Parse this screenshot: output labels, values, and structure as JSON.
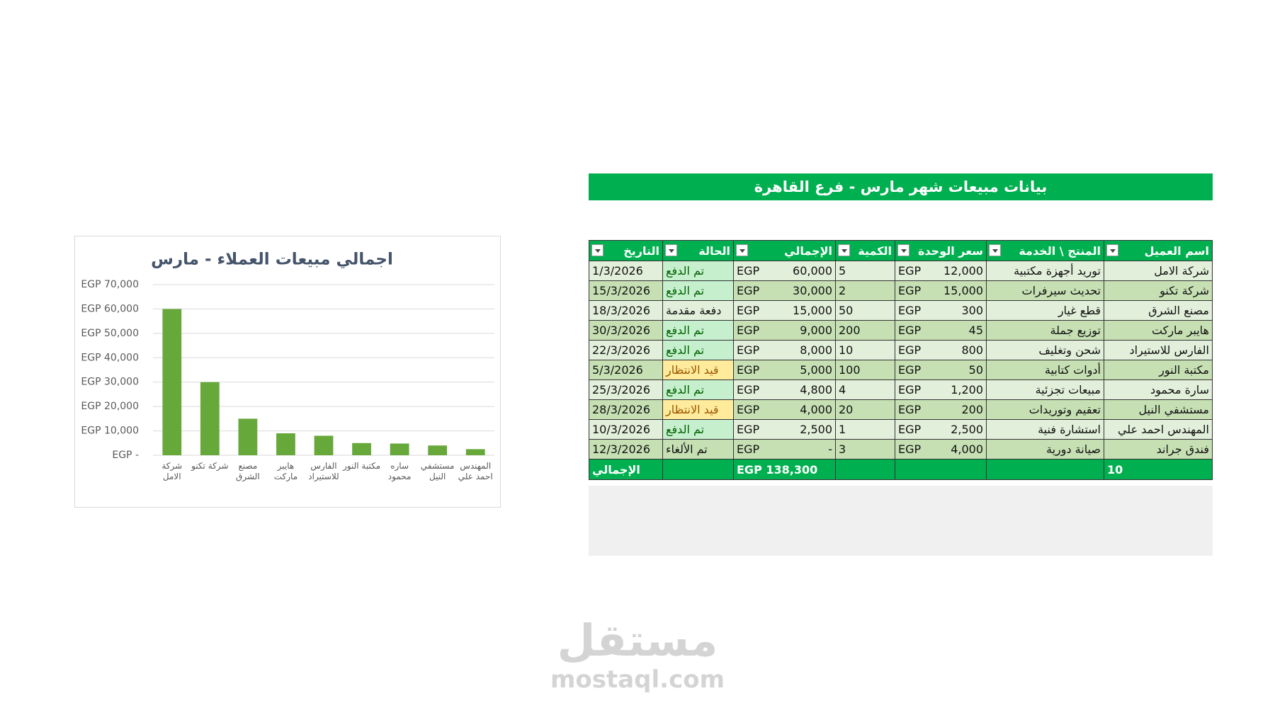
{
  "chart_data": {
    "type": "bar",
    "title": "اجمالي مبيعات العملاء - مارس",
    "categories": [
      "شركة الامل",
      "شركة تكنو",
      "مصنع الشرق",
      "هايبر ماركت",
      "الفارس للاستيراد",
      "مكتبة النور",
      "ساره محمود",
      "مستشفي النيل",
      "المهندس احمد علي"
    ],
    "values": [
      60000,
      30000,
      15000,
      9000,
      8000,
      5000,
      4800,
      4000,
      2500
    ],
    "color": "#67a83b",
    "ylim": [
      0,
      70000
    ],
    "yticks": [
      {
        "value": 0,
        "label": "EGP -"
      },
      {
        "value": 10000,
        "label": "EGP 10,000"
      },
      {
        "value": 20000,
        "label": "EGP 20,000"
      },
      {
        "value": 30000,
        "label": "EGP 30,000"
      },
      {
        "value": 40000,
        "label": "EGP 40,000"
      },
      {
        "value": 50000,
        "label": "EGP 50,000"
      },
      {
        "value": 60000,
        "label": "EGP 60,000"
      },
      {
        "value": 70000,
        "label": "EGP 70,000"
      }
    ],
    "grid": true
  },
  "table": {
    "title": "بيانات مبيعات شهر مارس - فرع القاهرة",
    "currency": "EGP",
    "headers": [
      "اسم العميل",
      "المنتج \\ الخدمة",
      "سعر الوحدة",
      "الكمية",
      "الإجمالي",
      "الحالة",
      "التاريخ"
    ],
    "rows": [
      {
        "client": "شركة الامل",
        "product": "توريد أجهزة مكتبية",
        "price": "12,000",
        "qty": "5",
        "total": "60,000",
        "status": "تم الدفع",
        "status_color": "#006100",
        "status_fill": "#c6efce",
        "date": "1/3/2026"
      },
      {
        "client": "شركة تكنو",
        "product": "تحديث سيرفرات",
        "price": "15,000",
        "qty": "2",
        "total": "30,000",
        "status": "تم الدفع",
        "status_color": "#006100",
        "status_fill": "#c6efce",
        "date": "15/3/2026"
      },
      {
        "client": "مصنع الشرق",
        "product": "قطع غيار",
        "price": "300",
        "qty": "50",
        "total": "15,000",
        "status": "دفعة مقدمة",
        "date": "18/3/2026"
      },
      {
        "client": "هايبر ماركت",
        "product": "توزيع جملة",
        "price": "45",
        "qty": "200",
        "total": "9,000",
        "status": "تم الدفع",
        "status_color": "#006100",
        "status_fill": "#c6efce",
        "date": "30/3/2026"
      },
      {
        "client": "الفارس للاستيراد",
        "product": "شحن وتغليف",
        "price": "800",
        "qty": "10",
        "total": "8,000",
        "status": "تم الدفع",
        "status_color": "#006100",
        "status_fill": "#c6efce",
        "date": "22/3/2026"
      },
      {
        "client": "مكتبة النور",
        "product": "أدوات كتابية",
        "price": "50",
        "qty": "100",
        "total": "5,000",
        "status": "قيد الانتظار",
        "status_color": "#9c5700",
        "status_fill": "#ffeb9c",
        "date": "5/3/2026"
      },
      {
        "client": "سارة محمود",
        "product": "مبيعات تجزئية",
        "price": "1,200",
        "qty": "4",
        "total": "4,800",
        "status": "تم الدفع",
        "status_color": "#006100",
        "status_fill": "#c6efce",
        "date": "25/3/2026"
      },
      {
        "client": "مستشفي النيل",
        "product": "تعقيم وتوريدات",
        "price": "200",
        "qty": "20",
        "total": "4,000",
        "status": "قيد الانتظار",
        "status_color": "#9c5700",
        "status_fill": "#ffeb9c",
        "date": "28/3/2026"
      },
      {
        "client": "المهندس احمد علي",
        "product": "استشارة فنية",
        "price": "2,500",
        "qty": "1",
        "total": "2,500",
        "status": "تم الدفع",
        "status_color": "#006100",
        "status_fill": "#c6efce",
        "date": "10/3/2026"
      },
      {
        "client": "فندق جراند",
        "product": "صيانة دورية",
        "price": "4,000",
        "qty": "3",
        "total": "-",
        "status": "تم الألغاء",
        "date": "12/3/2026"
      }
    ],
    "total_row": {
      "label": "الإجمالي",
      "amount": "EGP 138,300",
      "count": "10"
    }
  },
  "watermark": {
    "logo": "مستقل",
    "site": "mostaql.com"
  }
}
